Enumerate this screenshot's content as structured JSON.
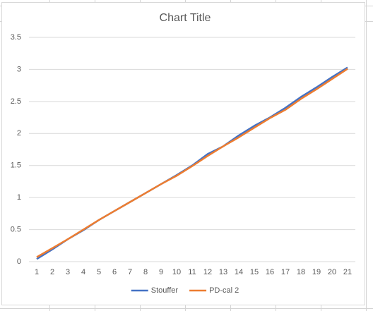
{
  "chart_data": {
    "type": "line",
    "title": "Chart Title",
    "categories": [
      "1",
      "2",
      "3",
      "4",
      "5",
      "6",
      "7",
      "8",
      "9",
      "10",
      "11",
      "12",
      "13",
      "14",
      "15",
      "16",
      "17",
      "18",
      "19",
      "20",
      "21"
    ],
    "series": [
      {
        "name": "Stouffer",
        "color": "#4472c4",
        "values": [
          0.04,
          0.19,
          0.35,
          0.49,
          0.65,
          0.79,
          0.93,
          1.07,
          1.21,
          1.35,
          1.5,
          1.68,
          1.8,
          1.97,
          2.12,
          2.25,
          2.4,
          2.57,
          2.72,
          2.88,
          3.03
        ]
      },
      {
        "name": "PD-cal 2",
        "color": "#ed7d31",
        "values": [
          0.07,
          0.21,
          0.35,
          0.5,
          0.65,
          0.79,
          0.93,
          1.07,
          1.21,
          1.34,
          1.49,
          1.65,
          1.8,
          1.94,
          2.09,
          2.24,
          2.37,
          2.54,
          2.69,
          2.85,
          3.01
        ]
      }
    ],
    "ylim": [
      0,
      3.5
    ],
    "yticks": [
      0,
      0.5,
      1,
      1.5,
      2,
      2.5,
      3,
      3.5
    ],
    "grid": true,
    "legend": "bottom"
  }
}
